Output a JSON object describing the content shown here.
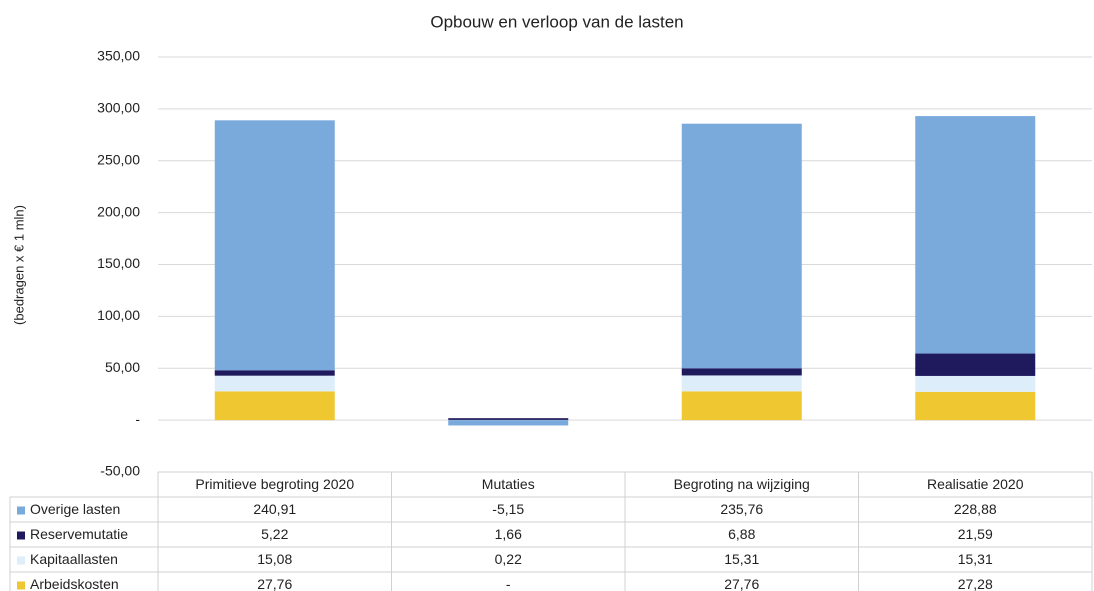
{
  "chart_data": {
    "type": "stacked_bar",
    "title": "Opbouw en verloop van de lasten",
    "y_label": "(bedragen x € 1 mln)",
    "categories": [
      "Primitieve begroting 2020",
      "Mutaties",
      "Begroting na wijziging",
      "Realisatie 2020"
    ],
    "series": [
      {
        "name": "Overige lasten",
        "color": "#7aaadc",
        "values": [
          240.91,
          -5.15,
          235.76,
          228.88
        ],
        "value_labels": [
          "240,91",
          "-5,15",
          "235,76",
          "228,88"
        ]
      },
      {
        "name": "Reservemutatie",
        "color": "#1f1a5e",
        "values": [
          5.22,
          1.66,
          6.88,
          21.59
        ],
        "value_labels": [
          "5,22",
          "1,66",
          "6,88",
          "21,59"
        ]
      },
      {
        "name": "Kapitaallasten",
        "color": "#ddeefa",
        "values": [
          15.08,
          0.22,
          15.31,
          15.31
        ],
        "value_labels": [
          "15,08",
          "0,22",
          "15,31",
          "15,31"
        ]
      },
      {
        "name": "Arbeidskosten",
        "color": "#eec731",
        "values": [
          27.76,
          0,
          27.76,
          27.28
        ],
        "value_labels": [
          "27,76",
          "-",
          "27,76",
          "27,28"
        ]
      }
    ],
    "ylim": [
      -50,
      350
    ],
    "yticks": [
      {
        "value": -50,
        "label": "-50,00"
      },
      {
        "value": 0,
        "label": "-"
      },
      {
        "value": 50,
        "label": "50,00"
      },
      {
        "value": 100,
        "label": "100,00"
      },
      {
        "value": 150,
        "label": "150,00"
      },
      {
        "value": 200,
        "label": "200,00"
      },
      {
        "value": 250,
        "label": "250,00"
      },
      {
        "value": 300,
        "label": "300,00"
      },
      {
        "value": 350,
        "label": "350,00"
      }
    ],
    "grid": true
  }
}
